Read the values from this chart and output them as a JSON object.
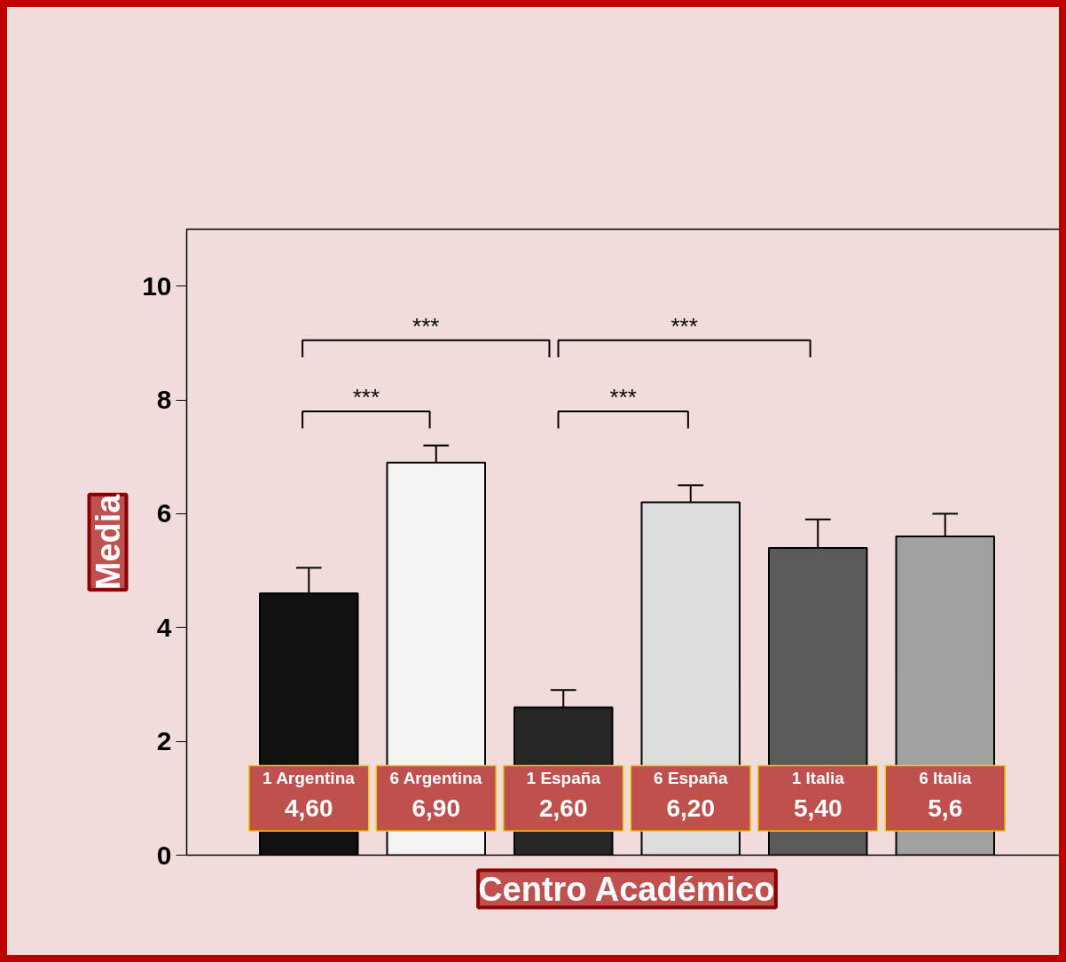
{
  "chart_data": {
    "type": "bar",
    "xlabel": "Centro Académico",
    "ylabel": "Media",
    "categories": [
      "1 Argentina",
      "6 Argentina",
      "1 España",
      "6 España",
      "1 Italia",
      "6 Italia"
    ],
    "values": [
      4.6,
      6.9,
      2.6,
      6.2,
      5.4,
      5.6
    ],
    "value_labels": [
      "4,60",
      "6,90",
      "2,60",
      "6,20",
      "5,40",
      "5,6"
    ],
    "errors": [
      0.45,
      0.3,
      0.3,
      0.3,
      0.5,
      0.4
    ],
    "colors": [
      "#111111",
      "#f4f4f4",
      "#262626",
      "#dcdcdc",
      "#5a5a5a",
      "#a0a0a0"
    ],
    "ylim": [
      0,
      11
    ],
    "yticks": [
      0,
      2,
      4,
      6,
      8,
      10
    ],
    "tick_labels": "y",
    "grid": false,
    "annotations": [
      "***",
      "***",
      "***",
      "***"
    ]
  }
}
